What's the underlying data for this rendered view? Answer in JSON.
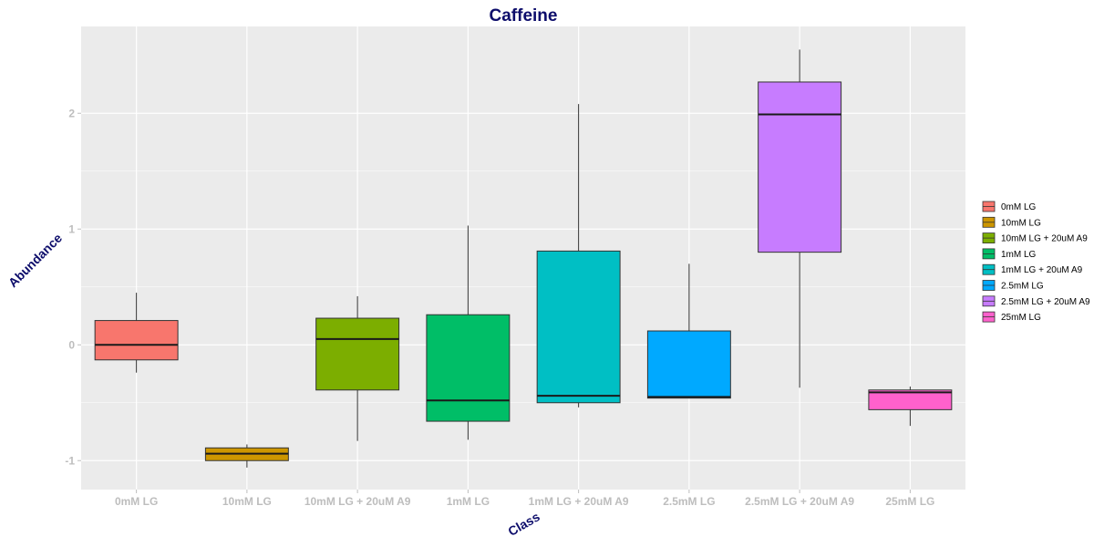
{
  "colors": {
    "title": "#0d0d6b",
    "panel_bg": "#ebebeb",
    "grid_major": "#ffffff",
    "tick_text": "#bdbdbd"
  },
  "chart_data": {
    "type": "box",
    "title": "Caffeine",
    "xlabel": "Class",
    "ylabel": "Abundance",
    "ylim": [
      -1.25,
      2.75
    ],
    "yticks": [
      -1,
      0,
      1,
      2
    ],
    "grid": true,
    "legend_position": "right",
    "categories": [
      "0mM LG",
      "10mM LG",
      "10mM LG + 20uM A9",
      "1mM LG",
      "1mM LG + 20uM A9",
      "2.5mM LG",
      "2.5mM LG + 20uM A9",
      "25mM LG"
    ],
    "series": [
      {
        "name": "0mM LG",
        "color": "#f8766d",
        "min": -0.24,
        "q1": -0.13,
        "median": 0.0,
        "q3": 0.21,
        "max": 0.45
      },
      {
        "name": "10mM LG",
        "color": "#cd9600",
        "min": -1.06,
        "q1": -1.0,
        "median": -0.94,
        "q3": -0.89,
        "max": -0.86
      },
      {
        "name": "10mM LG + 20uM A9",
        "color": "#7cae00",
        "min": -0.83,
        "q1": -0.39,
        "median": 0.05,
        "q3": 0.23,
        "max": 0.42
      },
      {
        "name": "1mM LG",
        "color": "#00be67",
        "min": -0.82,
        "q1": -0.66,
        "median": -0.48,
        "q3": 0.26,
        "max": 1.03
      },
      {
        "name": "1mM LG + 20uM A9",
        "color": "#00bfc4",
        "min": -0.54,
        "q1": -0.5,
        "median": -0.44,
        "q3": 0.81,
        "max": 2.08
      },
      {
        "name": "2.5mM LG",
        "color": "#00a9ff",
        "min": -0.46,
        "q1": -0.46,
        "median": -0.45,
        "q3": 0.12,
        "max": 0.7
      },
      {
        "name": "2.5mM LG + 20uM A9",
        "color": "#c77cff",
        "min": -0.37,
        "q1": 0.8,
        "median": 1.99,
        "q3": 2.27,
        "max": 2.55
      },
      {
        "name": "25mM LG",
        "color": "#ff61cc",
        "min": -0.7,
        "q1": -0.56,
        "median": -0.41,
        "q3": -0.39,
        "max": -0.36
      }
    ]
  }
}
